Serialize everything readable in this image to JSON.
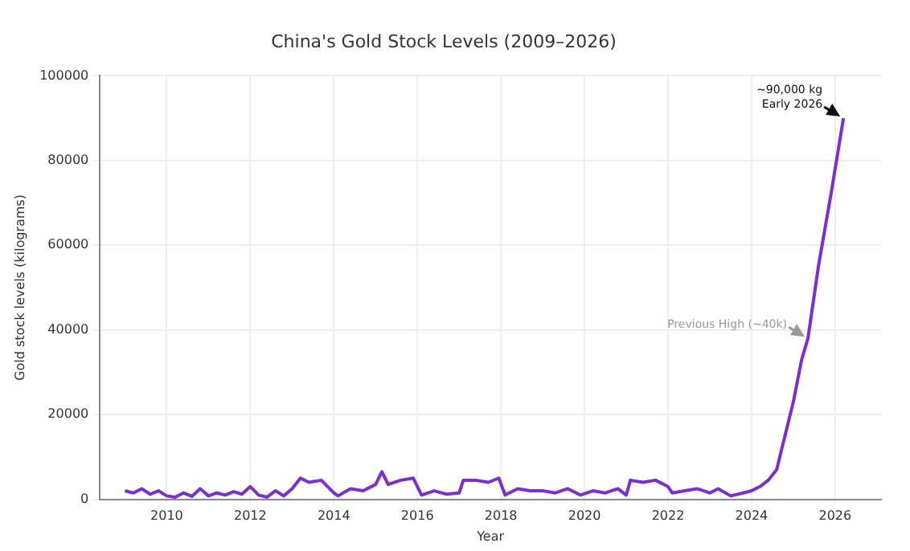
{
  "chart_data": {
    "type": "line",
    "title": "China's Gold Stock Levels (2009–2026)",
    "xlabel": "Year",
    "ylabel": "Gold stock levels (kilograms)",
    "xlim": [
      2008.4,
      2027.1
    ],
    "xticks": [
      2010,
      2012,
      2014,
      2016,
      2018,
      2020,
      2022,
      2024,
      2026
    ],
    "ylim": [
      0,
      100000
    ],
    "yticks": [
      0,
      20000,
      40000,
      60000,
      80000,
      100000
    ],
    "grid": true,
    "legend": false,
    "marker": "none",
    "series": [
      {
        "color": "#7b2fd0",
        "x": [
          2009.0,
          2009.2,
          2009.4,
          2009.6,
          2009.8,
          2010.0,
          2010.2,
          2010.4,
          2010.6,
          2010.8,
          2011.0,
          2011.2,
          2011.4,
          2011.6,
          2011.8,
          2012.0,
          2012.2,
          2012.4,
          2012.6,
          2012.8,
          2013.0,
          2013.2,
          2013.4,
          2013.7,
          2014.0,
          2014.1,
          2014.4,
          2014.7,
          2015.0,
          2015.15,
          2015.3,
          2015.6,
          2015.9,
          2016.1,
          2016.4,
          2016.7,
          2017.0,
          2017.1,
          2017.4,
          2017.7,
          2017.95,
          2018.1,
          2018.4,
          2018.7,
          2019.0,
          2019.3,
          2019.6,
          2019.9,
          2020.2,
          2020.5,
          2020.8,
          2021.0,
          2021.1,
          2021.4,
          2021.7,
          2022.0,
          2022.1,
          2022.4,
          2022.7,
          2023.0,
          2023.2,
          2023.5,
          2023.8,
          2024.0,
          2024.2,
          2024.4,
          2024.6,
          2024.8,
          2025.0,
          2025.2,
          2025.35,
          2025.6,
          2025.9,
          2026.2
        ],
        "values": [
          2000,
          1500,
          2500,
          1200,
          2000,
          800,
          500,
          1500,
          700,
          2500,
          800,
          1500,
          1000,
          1800,
          1200,
          3000,
          1000,
          500,
          2000,
          800,
          2500,
          5000,
          4000,
          4500,
          1500,
          800,
          2500,
          2000,
          3500,
          6500,
          3500,
          4500,
          5000,
          1000,
          2000,
          1200,
          1500,
          4500,
          4500,
          4000,
          5000,
          1000,
          2500,
          2000,
          2000,
          1500,
          2500,
          1000,
          2000,
          1500,
          2500,
          1000,
          4500,
          4000,
          4500,
          3000,
          1500,
          2000,
          2500,
          1500,
          2500,
          800,
          1500,
          2000,
          3000,
          4500,
          7000,
          15000,
          23000,
          33000,
          38000,
          55000,
          72000,
          90000
        ]
      }
    ],
    "annotations": [
      {
        "text": "~90,000 kg\nEarly 2026",
        "x": 2026.2,
        "y": 90000
      },
      {
        "text": "Previous High (~40k)",
        "x": 2025.35,
        "y": 38000
      }
    ]
  }
}
